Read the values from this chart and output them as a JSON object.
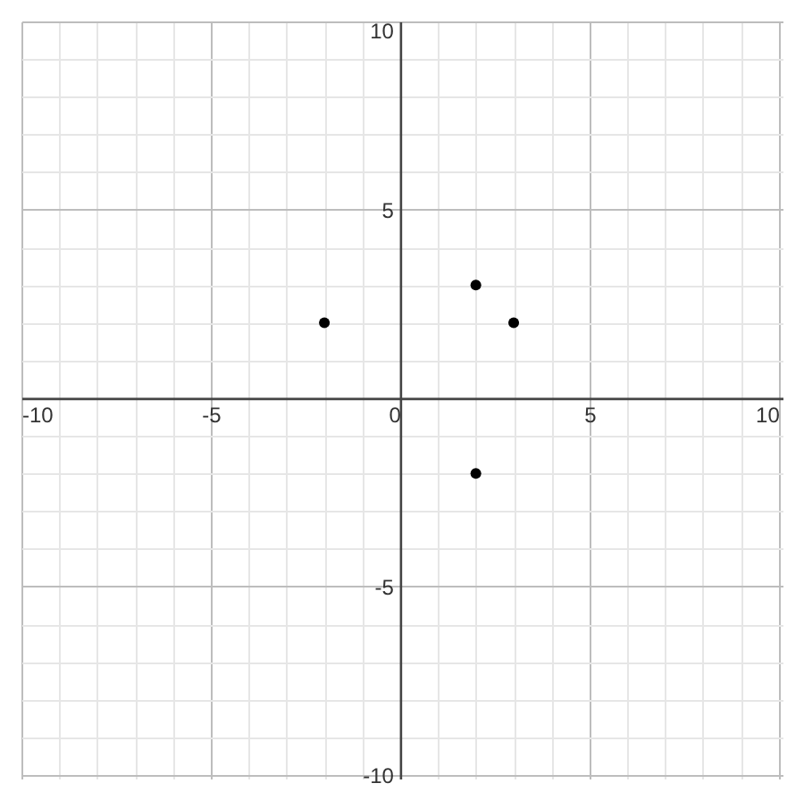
{
  "chart_data": {
    "type": "scatter",
    "x": [
      -2,
      2,
      3,
      2
    ],
    "values": [
      2,
      3,
      2,
      -2
    ],
    "color": "#000000",
    "marker": "circle",
    "grid": true,
    "xlim": [
      -10,
      10.1
    ],
    "ylim": [
      -10.1,
      10
    ],
    "xticks": [
      -10,
      {
        "value": -9,
        "label": null
      },
      {
        "value": -8,
        "label": null
      },
      {
        "value": -7,
        "label": null
      },
      {
        "value": -6,
        "label": null
      },
      -5,
      {
        "value": -4,
        "label": null
      },
      {
        "value": -3,
        "label": null
      },
      {
        "value": -2,
        "label": null
      },
      {
        "value": -1,
        "label": null
      },
      0,
      {
        "value": 1,
        "label": null
      },
      {
        "value": 2,
        "label": null
      },
      {
        "value": 3,
        "label": null
      },
      {
        "value": 4,
        "label": null
      },
      5,
      {
        "value": 6,
        "label": null
      },
      {
        "value": 7,
        "label": null
      },
      {
        "value": 8,
        "label": null
      },
      {
        "value": 9,
        "label": null
      },
      10
    ],
    "yticks": [
      -10,
      {
        "value": -9,
        "label": null
      },
      {
        "value": -8,
        "label": null
      },
      {
        "value": -7,
        "label": null
      },
      {
        "value": -6,
        "label": null
      },
      -5,
      {
        "value": -4,
        "label": null
      },
      {
        "value": -3,
        "label": null
      },
      {
        "value": -2,
        "label": null
      },
      {
        "value": -1,
        "label": null
      },
      {
        "value": 0,
        "label": null
      },
      {
        "value": 1,
        "label": null
      },
      {
        "value": 2,
        "label": null
      },
      {
        "value": 3,
        "label": null
      },
      {
        "value": 4,
        "label": null
      },
      5,
      {
        "value": 6,
        "label": null
      },
      {
        "value": 7,
        "label": null
      },
      {
        "value": 8,
        "label": null
      },
      {
        "value": 9,
        "label": null
      },
      10
    ]
  }
}
